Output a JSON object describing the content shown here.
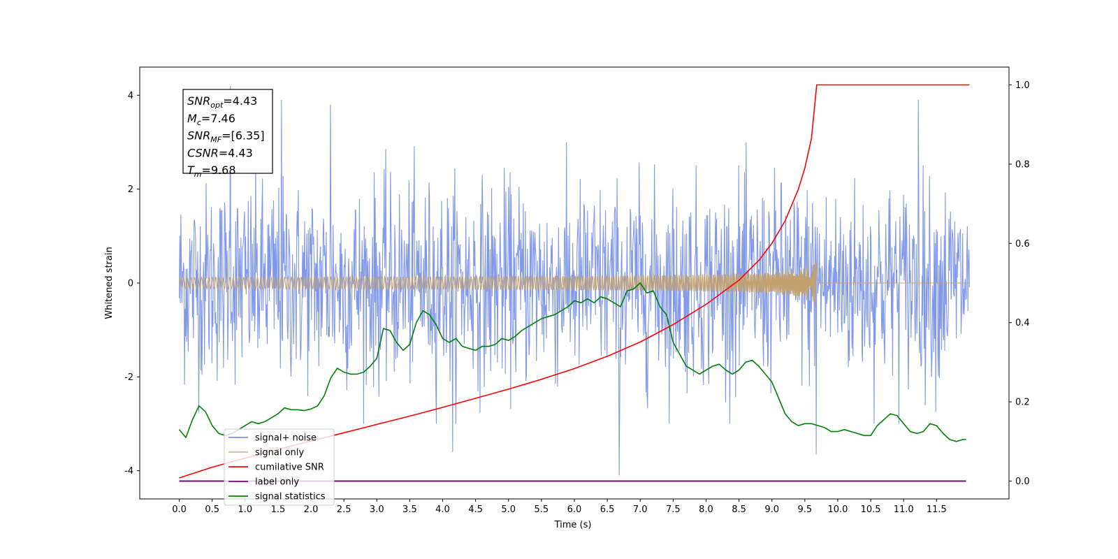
{
  "chart_data": {
    "type": "line",
    "xlabel": "Time (s)",
    "ylabel": "Whitened strain",
    "xlim": [
      -0.6,
      12.6
    ],
    "ylim": [
      -4.6,
      4.6
    ],
    "y2lim": [
      -0.045,
      1.045
    ],
    "x_ticks": [
      "0.0",
      "0.5",
      "1.0",
      "1.5",
      "2.0",
      "2.5",
      "3.0",
      "3.5",
      "4.0",
      "4.5",
      "5.0",
      "5.5",
      "6.0",
      "6.5",
      "7.0",
      "7.5",
      "8.0",
      "8.5",
      "9.0",
      "9.5",
      "10.0",
      "10.5",
      "11.0",
      "11.5"
    ],
    "y_ticks": [
      "4",
      "2",
      "0",
      "-2",
      "-4"
    ],
    "y2_ticks": [
      "1.0",
      "0.8",
      "0.6",
      "0.4",
      "0.2",
      "0.0"
    ],
    "legend_position": "lower-left",
    "info_box": {
      "lines": [
        {
          "base": "SNR",
          "sub": "opt",
          "value": "=4.43"
        },
        {
          "base": "M",
          "sub": "c",
          "value": "=7.46"
        },
        {
          "base": "SNR",
          "sub": "MF",
          "value": "=[6.35]"
        },
        {
          "base": "CSNR",
          "sub": "",
          "value": "=4.43"
        },
        {
          "base": "T",
          "sub": "m",
          "value": "=9.68"
        }
      ]
    },
    "series": [
      {
        "name": "signal+ noise",
        "axis": "left",
        "color": "#7b93e8",
        "style": "noise band",
        "x_range": [
          0.0,
          12.0
        ],
        "envelope_min": -2.0,
        "envelope_max": 2.0,
        "spikes": [
          {
            "x": 0.78,
            "y": 4.2
          },
          {
            "x": 1.55,
            "y": 3.9
          },
          {
            "x": 2.3,
            "y": 3.8
          },
          {
            "x": 11.22,
            "y": 3.9
          },
          {
            "x": 6.68,
            "y": -4.1
          },
          {
            "x": 4.15,
            "y": -3.6
          },
          {
            "x": 9.67,
            "y": -3.65
          }
        ]
      },
      {
        "name": "signal only",
        "axis": "left",
        "color": "#c4a270",
        "style": "chirp",
        "x_range": [
          0.0,
          12.0
        ],
        "merger_time": 9.68,
        "peak_amplitude": 0.6
      },
      {
        "name": "cumilative SNR",
        "axis": "right",
        "color": "#ff0000",
        "x": [
          0.0,
          0.5,
          1.0,
          1.5,
          2.0,
          2.5,
          3.0,
          3.5,
          4.0,
          4.5,
          5.0,
          5.5,
          6.0,
          6.5,
          7.0,
          7.5,
          8.0,
          8.5,
          8.8,
          9.0,
          9.2,
          9.4,
          9.5,
          9.6,
          9.68,
          10.0,
          10.5,
          11.0,
          11.5,
          12.0
        ],
        "y": [
          0.008,
          0.035,
          0.058,
          0.08,
          0.101,
          0.122,
          0.143,
          0.164,
          0.186,
          0.209,
          0.232,
          0.257,
          0.284,
          0.315,
          0.351,
          0.395,
          0.446,
          0.507,
          0.557,
          0.6,
          0.657,
          0.736,
          0.79,
          0.865,
          1.0,
          1.0,
          1.0,
          1.0,
          1.0,
          1.0
        ]
      },
      {
        "name": "label only",
        "axis": "right",
        "color": "#6f0a78",
        "x": [
          0.0,
          11.95
        ],
        "y": [
          0.0,
          0.0
        ]
      },
      {
        "name": "signal statistics",
        "axis": "right",
        "color": "#008000",
        "x": [
          0.0,
          0.1,
          0.2,
          0.3,
          0.4,
          0.5,
          0.6,
          0.7,
          0.8,
          0.9,
          1.0,
          1.1,
          1.2,
          1.3,
          1.4,
          1.5,
          1.6,
          1.7,
          1.8,
          1.9,
          2.0,
          2.1,
          2.2,
          2.3,
          2.4,
          2.5,
          2.6,
          2.7,
          2.8,
          2.9,
          3.0,
          3.1,
          3.2,
          3.3,
          3.4,
          3.5,
          3.6,
          3.7,
          3.8,
          3.9,
          4.0,
          4.1,
          4.2,
          4.3,
          4.4,
          4.5,
          4.6,
          4.7,
          4.8,
          4.9,
          5.0,
          5.1,
          5.2,
          5.3,
          5.4,
          5.5,
          5.6,
          5.7,
          5.8,
          5.9,
          6.0,
          6.1,
          6.2,
          6.3,
          6.4,
          6.5,
          6.6,
          6.7,
          6.8,
          6.9,
          7.0,
          7.1,
          7.2,
          7.3,
          7.4,
          7.5,
          7.6,
          7.7,
          7.8,
          7.9,
          8.0,
          8.1,
          8.2,
          8.3,
          8.4,
          8.5,
          8.6,
          8.7,
          8.8,
          8.9,
          9.0,
          9.1,
          9.2,
          9.3,
          9.4,
          9.5,
          9.6,
          9.7,
          9.8,
          9.9,
          10.0,
          10.1,
          10.2,
          10.3,
          10.4,
          10.5,
          10.6,
          10.7,
          10.8,
          10.9,
          11.0,
          11.1,
          11.2,
          11.3,
          11.4,
          11.5,
          11.6,
          11.7,
          11.8,
          11.9,
          11.95
        ],
        "y": [
          0.13,
          0.11,
          0.155,
          0.19,
          0.175,
          0.14,
          0.12,
          0.115,
          0.12,
          0.13,
          0.14,
          0.15,
          0.145,
          0.15,
          0.16,
          0.17,
          0.185,
          0.18,
          0.18,
          0.178,
          0.182,
          0.19,
          0.215,
          0.26,
          0.285,
          0.275,
          0.27,
          0.27,
          0.275,
          0.29,
          0.31,
          0.385,
          0.38,
          0.35,
          0.33,
          0.345,
          0.4,
          0.43,
          0.42,
          0.395,
          0.36,
          0.35,
          0.36,
          0.34,
          0.335,
          0.33,
          0.34,
          0.34,
          0.345,
          0.36,
          0.355,
          0.365,
          0.38,
          0.39,
          0.4,
          0.41,
          0.415,
          0.42,
          0.43,
          0.44,
          0.455,
          0.45,
          0.46,
          0.45,
          0.465,
          0.46,
          0.45,
          0.44,
          0.48,
          0.485,
          0.5,
          0.475,
          0.48,
          0.44,
          0.42,
          0.35,
          0.32,
          0.29,
          0.28,
          0.27,
          0.28,
          0.29,
          0.295,
          0.28,
          0.27,
          0.28,
          0.3,
          0.305,
          0.29,
          0.27,
          0.25,
          0.21,
          0.17,
          0.15,
          0.14,
          0.145,
          0.145,
          0.14,
          0.135,
          0.125,
          0.125,
          0.13,
          0.125,
          0.12,
          0.115,
          0.115,
          0.14,
          0.155,
          0.17,
          0.165,
          0.145,
          0.125,
          0.12,
          0.125,
          0.145,
          0.14,
          0.12,
          0.105,
          0.1,
          0.105,
          0.105
        ]
      }
    ]
  }
}
